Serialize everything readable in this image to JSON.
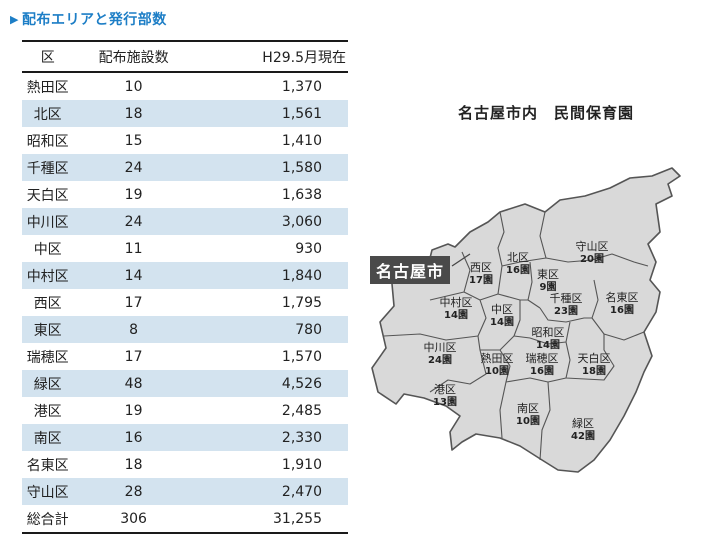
{
  "heading": "配布エリアと発行部数",
  "table": {
    "headers": [
      "区",
      "配布施設数",
      "H29.5月現在"
    ],
    "rows": [
      {
        "ward": "熱田区",
        "count": "10",
        "copies": "1,370"
      },
      {
        "ward": "北区",
        "count": "18",
        "copies": "1,561"
      },
      {
        "ward": "昭和区",
        "count": "15",
        "copies": "1,410"
      },
      {
        "ward": "千種区",
        "count": "24",
        "copies": "1,580"
      },
      {
        "ward": "天白区",
        "count": "19",
        "copies": "1,638"
      },
      {
        "ward": "中川区",
        "count": "24",
        "copies": "3,060"
      },
      {
        "ward": "中区",
        "count": "11",
        "copies": "930"
      },
      {
        "ward": "中村区",
        "count": "14",
        "copies": "1,840"
      },
      {
        "ward": "西区",
        "count": "17",
        "copies": "1,795"
      },
      {
        "ward": "東区",
        "count": "8",
        "copies": "780"
      },
      {
        "ward": "瑞穂区",
        "count": "17",
        "copies": "1,570"
      },
      {
        "ward": "緑区",
        "count": "48",
        "copies": "4,526"
      },
      {
        "ward": "港区",
        "count": "19",
        "copies": "2,485"
      },
      {
        "ward": "南区",
        "count": "16",
        "copies": "2,330"
      },
      {
        "ward": "名東区",
        "count": "18",
        "copies": "1,910"
      },
      {
        "ward": "守山区",
        "count": "28",
        "copies": "2,470"
      }
    ],
    "total": {
      "label": "総合計",
      "count": "306",
      "copies": "31,255"
    }
  },
  "map": {
    "title": "名古屋市内　民間保育園",
    "city_label": "名古屋市",
    "fill_color": "#d9d9d9",
    "border_color": "#555555",
    "wards": [
      {
        "name": "北区",
        "count": "16園"
      },
      {
        "name": "守山区",
        "count": "20園"
      },
      {
        "name": "西区",
        "count": "17園"
      },
      {
        "name": "東区",
        "count": "9園"
      },
      {
        "name": "千種区",
        "count": "23園"
      },
      {
        "name": "名東区",
        "count": "16園"
      },
      {
        "name": "中村区",
        "count": "14園"
      },
      {
        "name": "中区",
        "count": "14園"
      },
      {
        "name": "昭和区",
        "count": "14園"
      },
      {
        "name": "中川区",
        "count": "24園"
      },
      {
        "name": "熱田区",
        "count": "10園"
      },
      {
        "name": "瑞穂区",
        "count": "16園"
      },
      {
        "name": "天白区",
        "count": "18園"
      },
      {
        "name": "港区",
        "count": "13園"
      },
      {
        "name": "南区",
        "count": "10園"
      },
      {
        "name": "緑区",
        "count": "42園"
      }
    ]
  }
}
